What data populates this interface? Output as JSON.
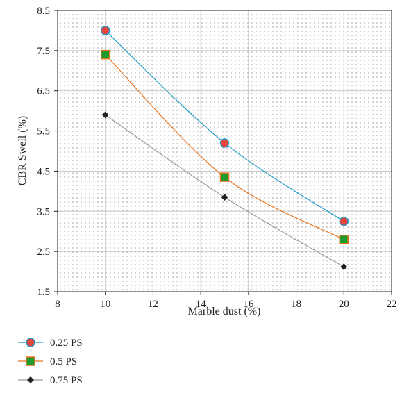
{
  "chart_data": {
    "type": "line",
    "title": "",
    "xlabel": "Marble dust (%)",
    "ylabel": "CBR Swell (%)",
    "xlim": [
      8,
      22
    ],
    "ylim": [
      1.5,
      8.5
    ],
    "xticks": [
      8,
      10,
      12,
      14,
      16,
      18,
      20,
      22
    ],
    "yticks": [
      1.5,
      2.5,
      3.5,
      4.5,
      5.5,
      6.5,
      7.5,
      8.5
    ],
    "x": [
      10,
      15,
      20
    ],
    "grid": "dotted",
    "legend_position": "bottom-left",
    "series": [
      {
        "name": "0.25 PS",
        "values": [
          8.0,
          5.2,
          3.25
        ],
        "color": "#1f9bc9",
        "marker": "circle",
        "marker_fill": "#e8453c"
      },
      {
        "name": "0.5 PS",
        "values": [
          7.4,
          4.35,
          2.8
        ],
        "color": "#e8731e",
        "marker": "square",
        "marker_fill": "#1f9a2c"
      },
      {
        "name": "0.75 PS",
        "values": [
          5.9,
          3.85,
          2.12
        ],
        "color": "#999999",
        "marker": "diamond",
        "marker_fill": "#222222"
      }
    ]
  }
}
